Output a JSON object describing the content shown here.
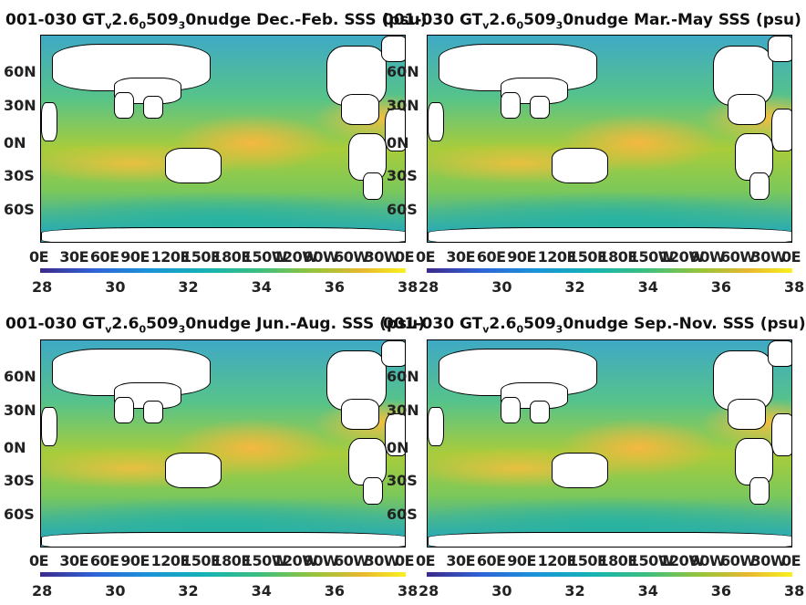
{
  "panels": [
    {
      "title_prefix": "001-030 GT",
      "sub1": "v",
      "mid1": "2.6",
      "sub2": "0",
      "mid2": "509",
      "sub3": "3",
      "title_suffix": "0nudge Dec.-Feb. SSS (psu)"
    },
    {
      "title_prefix": "001-030 GT",
      "sub1": "v",
      "mid1": "2.6",
      "sub2": "0",
      "mid2": "509",
      "sub3": "3",
      "title_suffix": "0nudge Mar.-May SSS (psu)"
    },
    {
      "title_prefix": "001-030 GT",
      "sub1": "v",
      "mid1": "2.6",
      "sub2": "0",
      "mid2": "509",
      "sub3": "3",
      "title_suffix": "0nudge Jun.-Aug. SSS (psu)"
    },
    {
      "title_prefix": "001-030 GT",
      "sub1": "v",
      "mid1": "2.6",
      "sub2": "0",
      "mid2": "509",
      "sub3": "3",
      "title_suffix": "0nudge Sep.-Nov. SSS (psu)"
    }
  ],
  "ylabels": [
    "60N",
    "30N",
    "0N",
    "30S",
    "60S"
  ],
  "xlabels": [
    "0E",
    "30E",
    "60E",
    "90E",
    "120E",
    "150E",
    "180E",
    "150W",
    "120W",
    "90W",
    "60W",
    "30W",
    "0E"
  ],
  "colorbar": {
    "ticks": [
      "28",
      "30",
      "32",
      "34",
      "36",
      "38"
    ],
    "range": [
      28,
      38
    ],
    "colormap": "parula"
  }
}
